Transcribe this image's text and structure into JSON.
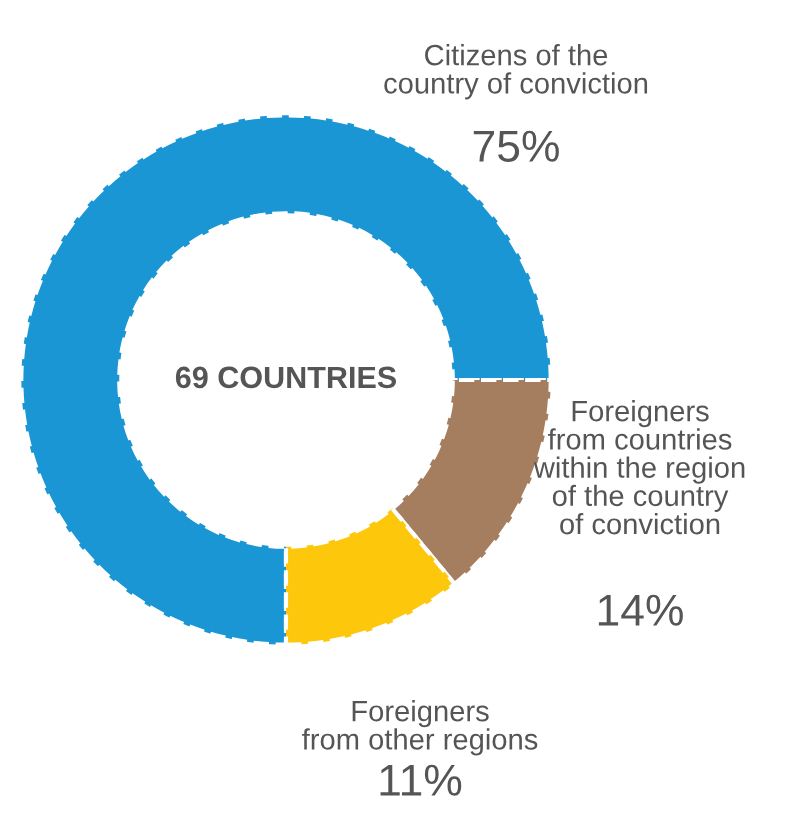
{
  "chart_data": {
    "type": "donut",
    "categories": [
      "Citizens of the\ncountry of conviction",
      "Foreigners\nfrom countries\nwithin the region\nof the country\nof conviction",
      "Foreigners\nfrom other regions"
    ],
    "values": [
      75,
      14,
      11
    ],
    "colors": [
      "#1a96d5",
      "#a57d5f",
      "#fdc70c"
    ],
    "value_labels": [
      "75%",
      "14%",
      "11%"
    ],
    "annotations": [
      "69 COUNTRIES"
    ]
  }
}
